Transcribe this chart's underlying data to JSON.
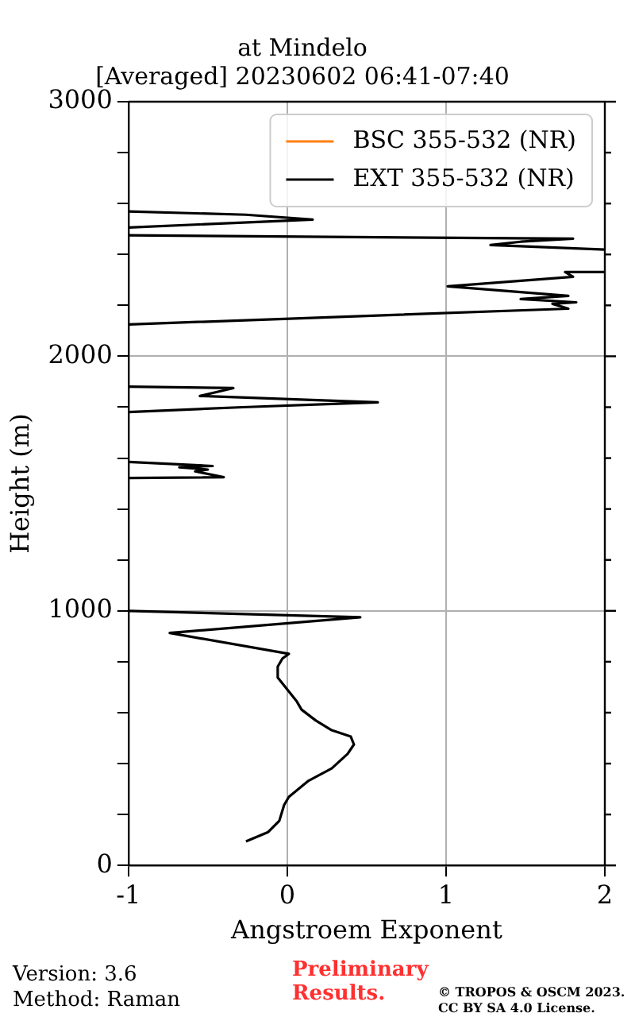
{
  "chart_data": {
    "type": "line",
    "title": "at Mindelo",
    "subtitle": "[Averaged] 20230602 06:41-07:40",
    "xlabel": "Angstroem Exponent",
    "ylabel": "Height (m)",
    "xlim": [
      -1,
      2
    ],
    "xticks": [
      -1,
      0,
      1,
      2
    ],
    "ylim": [
      0,
      3000
    ],
    "yticks": [
      0,
      {
        "value": 200,
        "label": null
      },
      {
        "value": 400,
        "label": null
      },
      {
        "value": 600,
        "label": null
      },
      {
        "value": 800,
        "label": null
      },
      1000,
      {
        "value": 1200,
        "label": null
      },
      {
        "value": 1400,
        "label": null
      },
      {
        "value": 1600,
        "label": null
      },
      {
        "value": 1800,
        "label": null
      },
      2000,
      {
        "value": 2200,
        "label": null
      },
      {
        "value": 2400,
        "label": null
      },
      {
        "value": 2600,
        "label": null
      },
      {
        "value": 2800,
        "label": null
      },
      3000
    ],
    "grid": true,
    "legend": "top right",
    "marker": "none",
    "line_style": "solid",
    "series": [
      {
        "name": "BSC 355-532 (NR)",
        "color": "#ff7f0e"
      },
      {
        "name": "EXT 355-532 (NR)",
        "color": "#000000",
        "x": [
          -0.26,
          -0.12,
          -0.05,
          -0.02,
          0.01,
          0.13,
          0.28,
          0.38,
          0.42,
          0.4,
          0.28,
          0.18,
          0.09,
          0.06,
          -0.06,
          -0.06,
          -0.03,
          0.01,
          -0.74,
          0.46,
          -1,
          null,
          -1,
          -0.4,
          -0.58,
          -0.5,
          -0.68,
          -0.47,
          -1,
          null,
          -1,
          -0.28,
          0.57,
          -0.55,
          -0.34,
          -1,
          null,
          -1,
          1.77,
          1.67,
          1.82,
          1.47,
          1.77,
          1.01,
          1.8,
          1.75,
          2,
          null,
          2,
          1.28,
          1.47,
          1.8,
          -1,
          null,
          -1,
          0.16,
          -0.26,
          -1
        ],
        "values": [
          94,
          131,
          175,
          237,
          269,
          331,
          381,
          438,
          475,
          506,
          531,
          569,
          612,
          644,
          738,
          781,
          813,
          831,
          913,
          975,
          1000,
          null,
          1522,
          1525,
          1548,
          1555,
          1564,
          1569,
          1585,
          null,
          1781,
          1800,
          1819,
          1844,
          1875,
          1881,
          null,
          2125,
          2187,
          2206,
          2212,
          2225,
          2237,
          2275,
          2312,
          2331,
          2331,
          null,
          2419,
          2437,
          2450,
          2462,
          2475,
          null,
          2506,
          2537,
          2556,
          2569
        ]
      }
    ],
    "annotations": [
      "Version: 3.6",
      "Method: Raman",
      "Preliminary Results.",
      "© TROPOS & OSCM 2023. CC BY SA 4.0 License."
    ]
  }
}
